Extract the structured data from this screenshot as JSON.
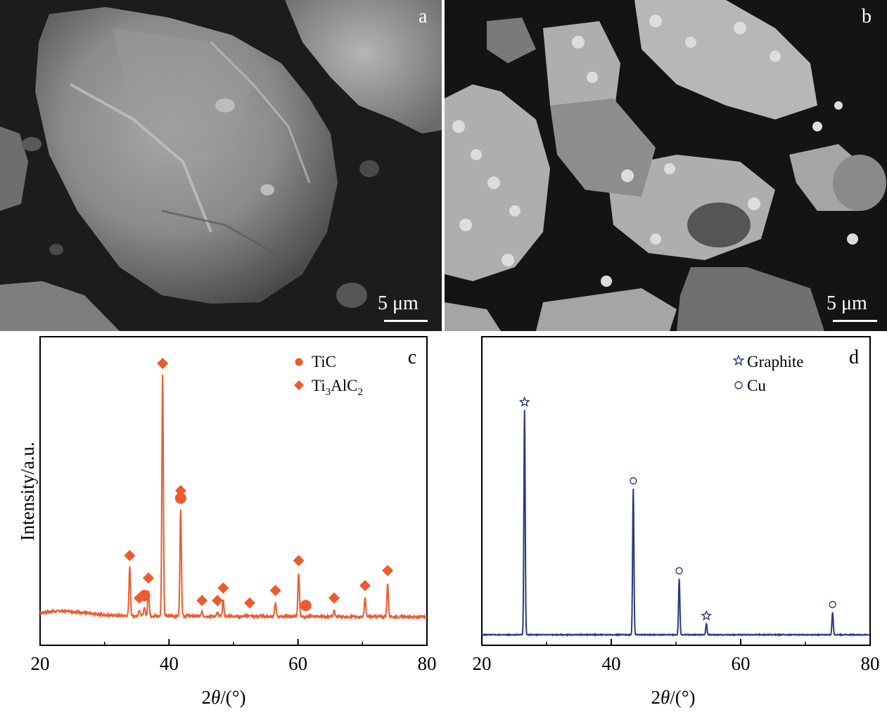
{
  "figure": {
    "panel_a": {
      "letter": "a",
      "scale_label": "5 μm"
    },
    "panel_b": {
      "letter": "b",
      "scale_label": "5 μm"
    }
  },
  "chart_data": [
    {
      "type": "line",
      "panel_letter": "c",
      "xlabel": "2θ/(°)",
      "ylabel": "Intensity/a.u.",
      "xlim": [
        20,
        80
      ],
      "xticks": [
        20,
        40,
        60,
        80
      ],
      "y_ticks": "none",
      "legend": {
        "placement": "top-right",
        "entries": [
          {
            "label": "TiC",
            "marker": "circle"
          },
          {
            "label": "Ti3AlC2",
            "marker": "diamond"
          }
        ]
      },
      "series": [
        {
          "color": "#ee5a2e",
          "baseline": 3.5,
          "peaks": [
            {
              "x": 33.9,
              "y": 23,
              "marker": "diamond"
            },
            {
              "x": 35.4,
              "y": 6,
              "marker": "diamond"
            },
            {
              "x": 36.2,
              "y": 7,
              "marker": "circle"
            },
            {
              "x": 36.8,
              "y": 14,
              "marker": "diamond"
            },
            {
              "x": 39.0,
              "y": 100,
              "marker": "diamond"
            },
            {
              "x": 41.8,
              "y": 46,
              "marker": "circle"
            },
            {
              "x": 41.8,
              "y": 49,
              "marker": "diamond"
            },
            {
              "x": 45.1,
              "y": 5,
              "marker": "diamond"
            },
            {
              "x": 47.5,
              "y": 5,
              "marker": "diamond"
            },
            {
              "x": 48.4,
              "y": 10,
              "marker": "diamond"
            },
            {
              "x": 52.5,
              "y": 4,
              "marker": "diamond"
            },
            {
              "x": 56.5,
              "y": 9,
              "marker": "diamond"
            },
            {
              "x": 60.1,
              "y": 21,
              "marker": "diamond"
            },
            {
              "x": 61.2,
              "y": 3,
              "marker": "circle"
            },
            {
              "x": 65.6,
              "y": 6,
              "marker": "diamond"
            },
            {
              "x": 70.4,
              "y": 11,
              "marker": "diamond"
            },
            {
              "x": 73.9,
              "y": 17,
              "marker": "diamond"
            }
          ]
        }
      ]
    },
    {
      "type": "line",
      "panel_letter": "d",
      "xlabel": "2θ/(°)",
      "ylabel": "",
      "xlim": [
        20,
        80
      ],
      "xticks": [
        20,
        40,
        60,
        80
      ],
      "y_ticks": "none",
      "legend": {
        "placement": "top-right",
        "entries": [
          {
            "label": "Graphite",
            "marker": "star"
          },
          {
            "label": "Cu",
            "marker": "open-circle"
          }
        ]
      },
      "series": [
        {
          "color": "#2b3a7f",
          "baseline": 0,
          "peaks": [
            {
              "x": 26.6,
              "y": 100,
              "marker": "star"
            },
            {
              "x": 43.4,
              "y": 65,
              "marker": "open-circle"
            },
            {
              "x": 50.5,
              "y": 25,
              "marker": "open-circle"
            },
            {
              "x": 54.7,
              "y": 5,
              "marker": "star"
            },
            {
              "x": 74.2,
              "y": 10,
              "marker": "open-circle"
            }
          ]
        }
      ]
    }
  ]
}
